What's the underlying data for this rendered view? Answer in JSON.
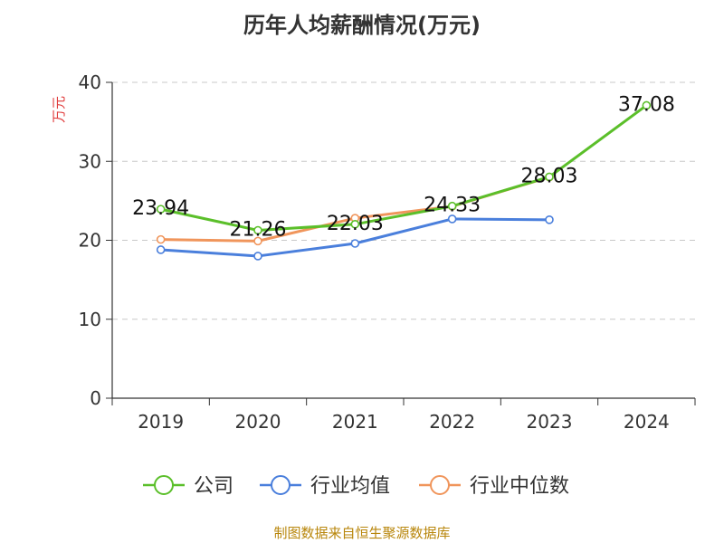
{
  "chart_data": {
    "type": "line",
    "title": "历年人均薪酬情况(万元)",
    "ylabel": "万元",
    "ylabel_color": "#e03c3c",
    "categories": [
      "2019",
      "2020",
      "2021",
      "2022",
      "2023",
      "2024"
    ],
    "yticks": [
      "0",
      "10",
      "20",
      "30",
      "40"
    ],
    "ylim": [
      0,
      40
    ],
    "grid": true,
    "legend_position": "bottom",
    "series": [
      {
        "name": "公司",
        "color": "#5bbf2a",
        "values": [
          23.94,
          21.26,
          22.03,
          24.33,
          28.03,
          37.08
        ],
        "labels": [
          "23.94",
          "21.26",
          "22.03",
          "24.33",
          "28.03",
          "37.08"
        ]
      },
      {
        "name": "行业均值",
        "color": "#4a7fdc",
        "values": [
          18.8,
          18.0,
          19.6,
          22.7,
          22.6,
          null
        ]
      },
      {
        "name": "行业中位数",
        "color": "#f0955b",
        "values": [
          20.1,
          19.9,
          22.8,
          24.3,
          28.0,
          null
        ]
      }
    ],
    "source": "制图数据来自恒生聚源数据库"
  }
}
